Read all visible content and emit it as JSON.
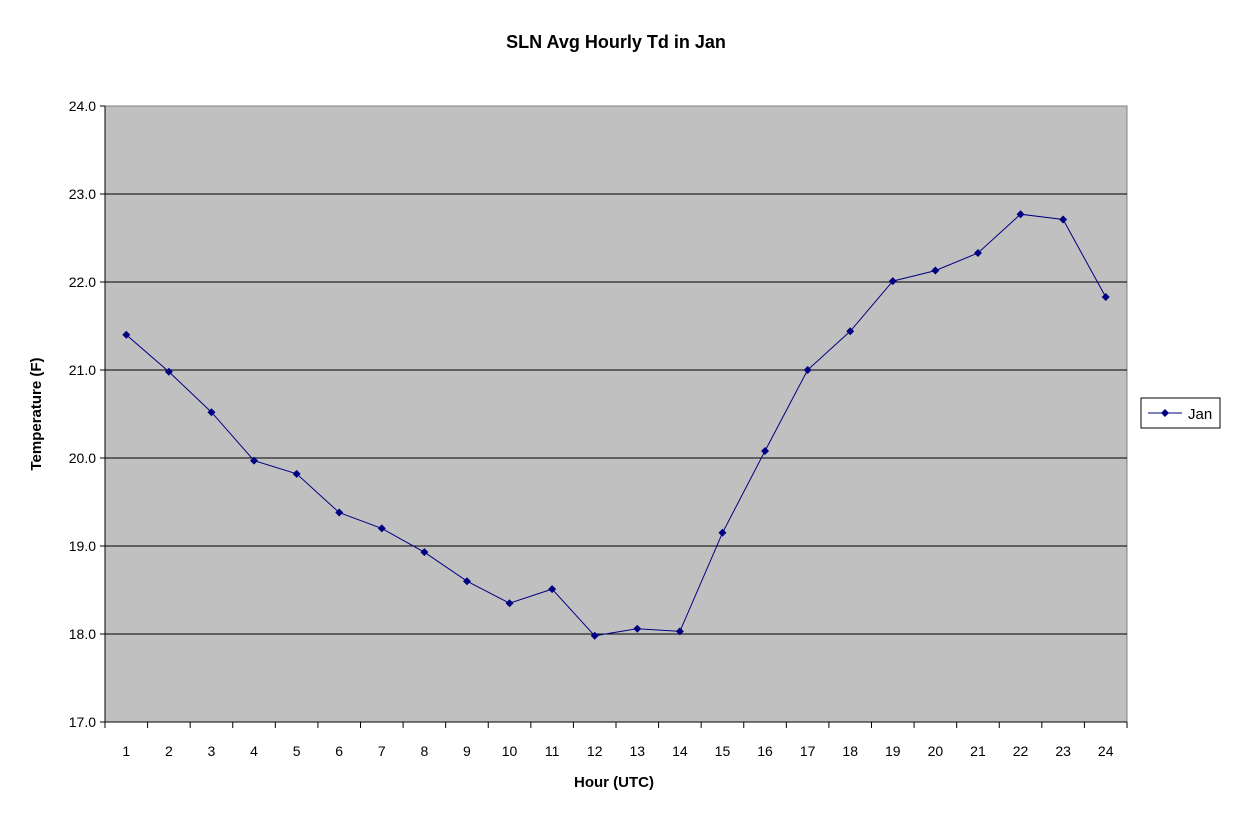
{
  "chart_data": {
    "type": "line",
    "title": "SLN Avg Hourly Td in Jan",
    "xlabel": "Hour (UTC)",
    "ylabel": "Temperature (F)",
    "categories": [
      "1",
      "2",
      "3",
      "4",
      "5",
      "6",
      "7",
      "8",
      "9",
      "10",
      "11",
      "12",
      "13",
      "14",
      "15",
      "16",
      "17",
      "18",
      "19",
      "20",
      "21",
      "22",
      "23",
      "24"
    ],
    "ylim": [
      17.0,
      24.0
    ],
    "yticks": [
      "17.0",
      "18.0",
      "19.0",
      "20.0",
      "21.0",
      "22.0",
      "23.0",
      "24.0"
    ],
    "grid": true,
    "legend_position": "right",
    "plot_background": "#c0c0c0",
    "series": [
      {
        "name": "Jan",
        "color": "#000080",
        "marker": "diamond",
        "values": [
          21.4,
          20.98,
          20.52,
          19.97,
          19.82,
          19.38,
          19.2,
          18.93,
          18.6,
          18.35,
          18.51,
          17.98,
          18.06,
          18.03,
          19.15,
          20.08,
          21.0,
          21.44,
          22.01,
          22.13,
          22.33,
          22.77,
          22.71,
          21.83
        ]
      }
    ]
  }
}
